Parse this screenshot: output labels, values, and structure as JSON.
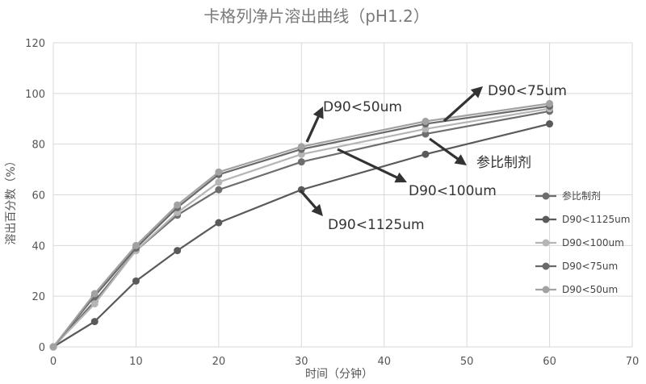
{
  "chart_data": {
    "type": "line",
    "title": "卡格列净片溶出曲线（pH1.2）",
    "xlabel": "时间（分钟）",
    "ylabel": "溶出百分数（%）",
    "xlim": [
      0,
      70
    ],
    "ylim": [
      0,
      120
    ],
    "xticks": [
      0,
      10,
      20,
      30,
      40,
      50,
      60,
      70
    ],
    "yticks": [
      0,
      20,
      40,
      60,
      80,
      100,
      120
    ],
    "grid": true,
    "legend_position": "right",
    "x": [
      0,
      5,
      10,
      15,
      20,
      30,
      45,
      60
    ],
    "series": [
      {
        "name": "参比制剂",
        "color": "#6e6e6e",
        "values": [
          0,
          18,
          38,
          52,
          62,
          73,
          84,
          93
        ]
      },
      {
        "name": "D90<1125um",
        "color": "#5a5a5a",
        "values": [
          0,
          10,
          26,
          38,
          49,
          62,
          76,
          88
        ]
      },
      {
        "name": "D90<100um",
        "color": "#b5b5b5",
        "values": [
          0,
          17,
          38,
          53,
          65,
          76,
          86,
          94
        ]
      },
      {
        "name": "D90<75um",
        "color": "#696969",
        "values": [
          0,
          20,
          39,
          55,
          68,
          78,
          88,
          95
        ]
      },
      {
        "name": "D90<50um",
        "color": "#a2a2a2",
        "values": [
          0,
          21,
          40,
          56,
          69,
          79,
          89,
          96
        ]
      }
    ],
    "annotations": [
      {
        "text": "D90<50um"
      },
      {
        "text": "D90<75um"
      },
      {
        "text": "参比制剂"
      },
      {
        "text": "D90<100um"
      },
      {
        "text": "D90<1125um"
      }
    ]
  }
}
